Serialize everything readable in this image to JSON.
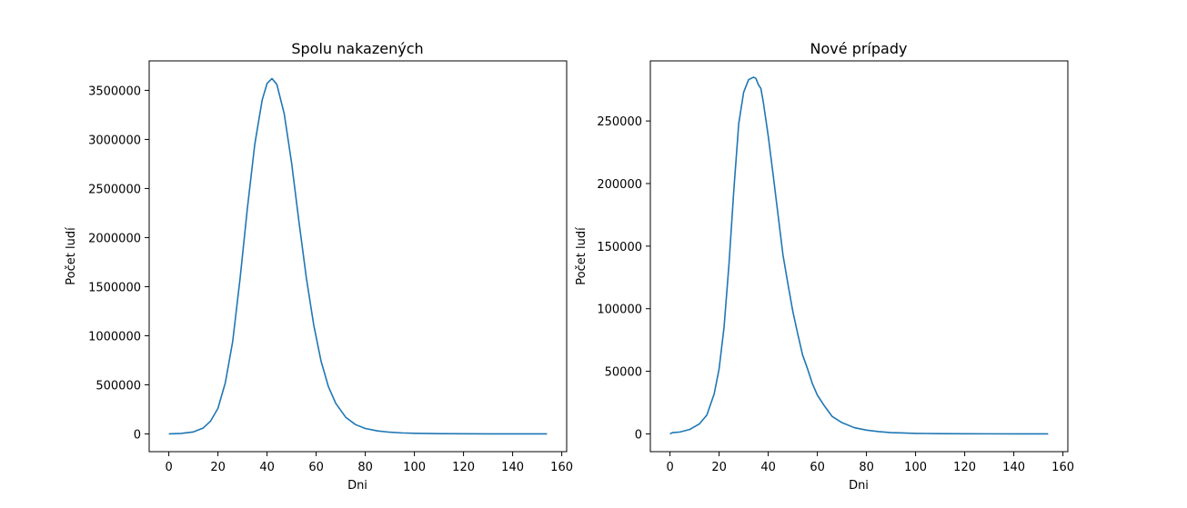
{
  "chart_data": [
    {
      "type": "line",
      "title": "Spolu nakazených",
      "xlabel": "Dni",
      "ylabel": "Počet ludí",
      "xlim": [
        -8,
        162
      ],
      "ylim": [
        -181000,
        3800000
      ],
      "xticks": [
        0,
        20,
        40,
        60,
        80,
        100,
        120,
        140,
        160
      ],
      "yticks": [
        0,
        500000,
        1000000,
        1500000,
        2000000,
        2500000,
        3000000,
        3500000
      ],
      "grid": false,
      "series": [
        {
          "color": "#1f77b4",
          "x": [
            0,
            5,
            10,
            14,
            17,
            20,
            23,
            26,
            29,
            32,
            35,
            38,
            40,
            42,
            44,
            47,
            50,
            53,
            56,
            59,
            62,
            65,
            68,
            72,
            76,
            80,
            85,
            90,
            95,
            100,
            110,
            120,
            130,
            140,
            154
          ],
          "y": [
            0,
            5000,
            20000,
            60000,
            130000,
            260000,
            520000,
            940000,
            1580000,
            2300000,
            2950000,
            3400000,
            3570000,
            3620000,
            3560000,
            3260000,
            2760000,
            2160000,
            1590000,
            1110000,
            740000,
            480000,
            310000,
            170000,
            95000,
            55000,
            30000,
            17000,
            10000,
            6000,
            2000,
            1000,
            500,
            300,
            100
          ]
        }
      ]
    },
    {
      "type": "line",
      "title": "Nové prípady",
      "xlabel": "Dni",
      "ylabel": "Počet ludí",
      "xlim": [
        -8,
        162
      ],
      "ylim": [
        -14200,
        298000
      ],
      "xticks": [
        0,
        20,
        40,
        60,
        80,
        100,
        120,
        140,
        160
      ],
      "yticks": [
        0,
        50000,
        100000,
        150000,
        200000,
        250000
      ],
      "grid": false,
      "series": [
        {
          "color": "#1f77b4",
          "x": [
            0,
            1,
            4,
            8,
            12,
            15,
            18,
            20,
            22,
            24,
            26,
            28,
            30,
            32,
            34,
            35,
            36,
            37,
            38,
            40,
            42,
            44,
            46,
            48,
            50,
            52,
            54,
            56,
            58,
            60,
            63,
            66,
            70,
            75,
            80,
            85,
            90,
            95,
            100,
            110,
            120,
            130,
            140,
            154
          ],
          "y": [
            0,
            1000,
            1500,
            3500,
            8000,
            15000,
            32000,
            52000,
            85000,
            135000,
            195000,
            248000,
            273000,
            283000,
            285000,
            284000,
            279000,
            276000,
            265000,
            238000,
            207000,
            175000,
            143000,
            120000,
            98000,
            80000,
            63000,
            52000,
            40000,
            31000,
            22000,
            14000,
            9000,
            5000,
            3000,
            1800,
            1000,
            700,
            400,
            200,
            100,
            50,
            30,
            10
          ]
        }
      ]
    }
  ]
}
